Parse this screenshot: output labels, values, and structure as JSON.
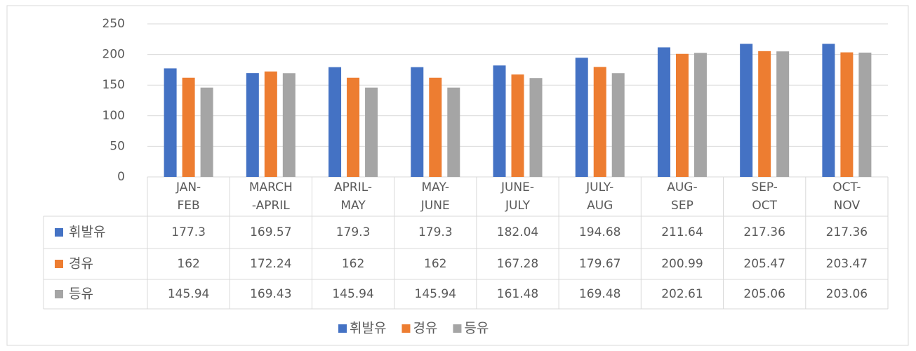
{
  "chart_data": {
    "type": "bar",
    "categories": [
      "JAN-\nFEB",
      "MARCH\n-APRIL",
      "APRIL-\nMAY",
      "MAY-\nJUNE",
      "JUNE-\nJULY",
      "JULY-\nAUG",
      "AUG-\nSEP",
      "SEP-\nOCT",
      "OCT-\nNOV"
    ],
    "series": [
      {
        "name": "휘발유",
        "color": "#4472c4",
        "values": [
          177.3,
          169.57,
          179.3,
          179.3,
          182.04,
          194.68,
          211.64,
          217.36,
          217.36
        ]
      },
      {
        "name": "경유",
        "color": "#ed7d31",
        "values": [
          162,
          172.24,
          162,
          162,
          167.28,
          179.67,
          200.99,
          205.47,
          203.47
        ]
      },
      {
        "name": "등유",
        "color": "#a5a5a5",
        "values": [
          145.94,
          169.43,
          145.94,
          145.94,
          161.48,
          169.48,
          202.61,
          205.06,
          203.06
        ]
      }
    ],
    "ylim": [
      0,
      250
    ],
    "yticks": [
      0,
      50,
      100,
      150,
      200,
      250
    ],
    "grid": true,
    "legend": "bottom"
  }
}
